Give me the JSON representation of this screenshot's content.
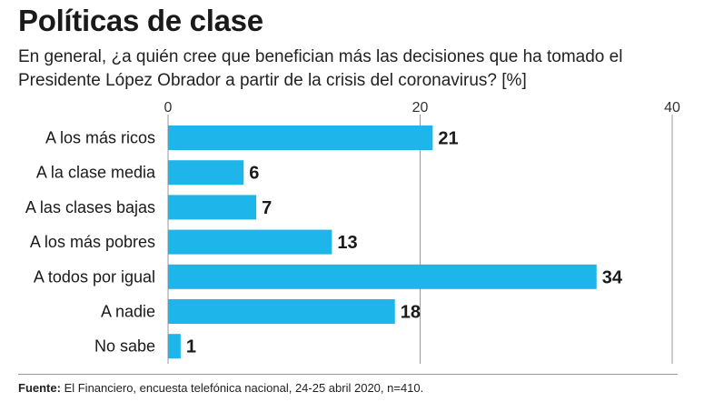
{
  "title": "Políticas de clase",
  "subtitle": "En general, ¿a quién cree que benefician más las decisiones que ha tomado el Presidente López Obrador a partir de la crisis del coronavirus? [%]",
  "source": {
    "label": "Fuente:",
    "text": " El Financiero, encuesta telefónica nacional, 24-25 abril 2020, n=410."
  },
  "colors": {
    "bar": "#1eb6ea",
    "text": "#1a1a1a",
    "grid": "#999999"
  },
  "chart_data": {
    "type": "bar",
    "orientation": "horizontal",
    "categories": [
      "A los más ricos",
      "A la clase media",
      "A las clases bajas",
      "A los más pobres",
      "A todos por igual",
      "A nadie",
      "No sabe"
    ],
    "values": [
      21,
      6,
      7,
      13,
      34,
      18,
      1
    ],
    "xlim": [
      0,
      40
    ],
    "ticks": [
      0,
      20,
      40
    ],
    "grid": true,
    "data_labels": true
  }
}
